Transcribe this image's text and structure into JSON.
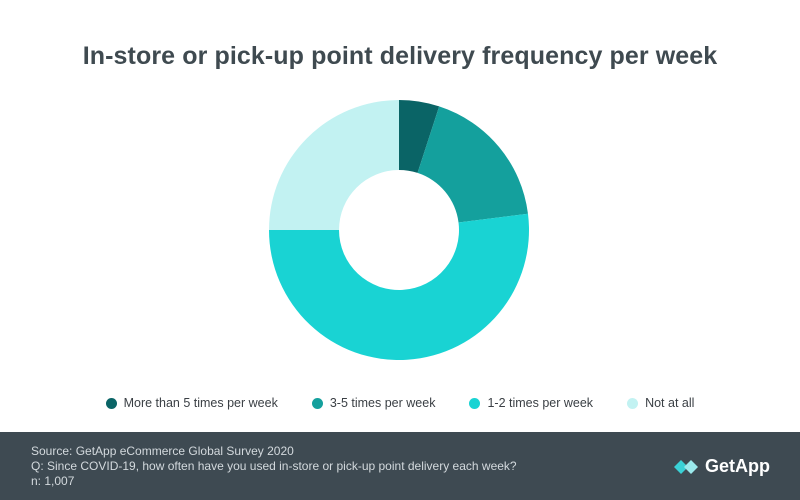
{
  "chart_data": {
    "type": "pie",
    "donut": true,
    "title": "In-store or pick-up point delivery frequency per week",
    "categories": [
      "More than 5 times per week",
      "3-5 times per week",
      "1-2 times per week",
      "Not at all"
    ],
    "values": [
      5,
      18,
      52,
      25
    ],
    "colors": [
      "#0a6466",
      "#14a09d",
      "#19d3d3",
      "#c2f2f2"
    ],
    "legend_position": "bottom"
  },
  "footer": {
    "source": "Source: GetApp eCommerce Global Survey 2020",
    "question": "Q: Since COVID-19, how often have you used in-store or pick-up point delivery each week?",
    "n": "n: 1,007"
  },
  "logo": {
    "text": "GetApp",
    "icon": "getapp-logo-icon"
  }
}
